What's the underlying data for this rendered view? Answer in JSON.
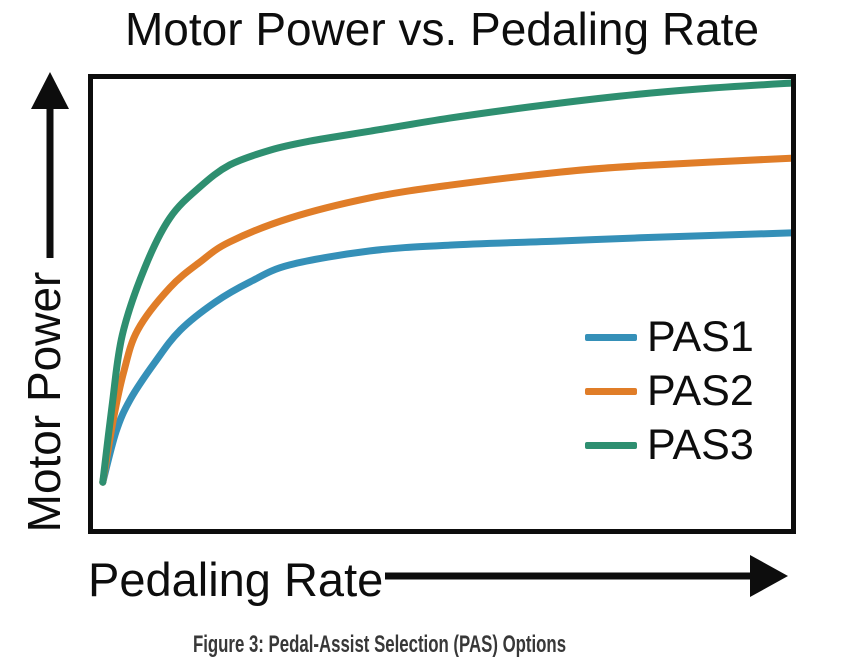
{
  "chart": {
    "title": "Motor Power vs. Pedaling Rate",
    "x_axis_label": "Pedaling Rate",
    "y_axis_label": "Motor Power",
    "caption": "Figure 3: Pedal-Assist Selection (PAS) Options"
  },
  "colors": {
    "axis_and_text": "#0d0d0d",
    "caption_text": "#383838",
    "background": "#ffffff",
    "pas1_blue": "#3590b8",
    "pas2_orange": "#e07d28",
    "pas3_green": "#2e8f70"
  },
  "chart_data": {
    "type": "line",
    "title": "Motor Power vs. Pedaling Rate",
    "xlabel": "Pedaling Rate",
    "ylabel": "Motor Power",
    "caption": "Figure 3: Pedal-Assist Selection (PAS) Options",
    "grid": false,
    "x_axis": {
      "style": "arrow, qualitative (no tick labels)",
      "range_normalized": [
        0,
        1
      ],
      "tick_labels": []
    },
    "y_axis": {
      "style": "arrow, qualitative (no tick labels)",
      "range_normalized": [
        0,
        1
      ],
      "tick_labels": []
    },
    "legend": {
      "position": "inside-right-center",
      "entries": [
        "PAS1",
        "PAS2",
        "PAS3"
      ]
    },
    "units_note": "points are [x,y] fractions of the unlabeled axes, read from the figure; all three saturating curves share a common start point",
    "series": [
      {
        "name": "PAS1",
        "color": "#3590b8",
        "points": [
          [
            0.014,
            0.104
          ],
          [
            0.033,
            0.216
          ],
          [
            0.053,
            0.287
          ],
          [
            0.089,
            0.371
          ],
          [
            0.125,
            0.442
          ],
          [
            0.175,
            0.504
          ],
          [
            0.225,
            0.549
          ],
          [
            0.282,
            0.587
          ],
          [
            0.397,
            0.618
          ],
          [
            0.511,
            0.631
          ],
          [
            0.669,
            0.64
          ],
          [
            0.784,
            0.647
          ],
          [
            1.0,
            0.658
          ]
        ]
      },
      {
        "name": "PAS2",
        "color": "#e07d28",
        "points": [
          [
            0.014,
            0.104
          ],
          [
            0.029,
            0.242
          ],
          [
            0.044,
            0.349
          ],
          [
            0.064,
            0.442
          ],
          [
            0.11,
            0.536
          ],
          [
            0.153,
            0.593
          ],
          [
            0.196,
            0.638
          ],
          [
            0.282,
            0.691
          ],
          [
            0.397,
            0.736
          ],
          [
            0.511,
            0.764
          ],
          [
            0.669,
            0.793
          ],
          [
            0.784,
            0.807
          ],
          [
            1.0,
            0.824
          ]
        ]
      },
      {
        "name": "PAS3",
        "color": "#2e8f70",
        "points": [
          [
            0.014,
            0.104
          ],
          [
            0.027,
            0.269
          ],
          [
            0.042,
            0.431
          ],
          [
            0.074,
            0.58
          ],
          [
            0.11,
            0.691
          ],
          [
            0.153,
            0.76
          ],
          [
            0.196,
            0.809
          ],
          [
            0.254,
            0.842
          ],
          [
            0.311,
            0.862
          ],
          [
            0.397,
            0.884
          ],
          [
            0.511,
            0.913
          ],
          [
            0.626,
            0.938
          ],
          [
            0.755,
            0.962
          ],
          [
            0.87,
            0.978
          ],
          [
            1.0,
            0.991
          ]
        ]
      }
    ]
  }
}
